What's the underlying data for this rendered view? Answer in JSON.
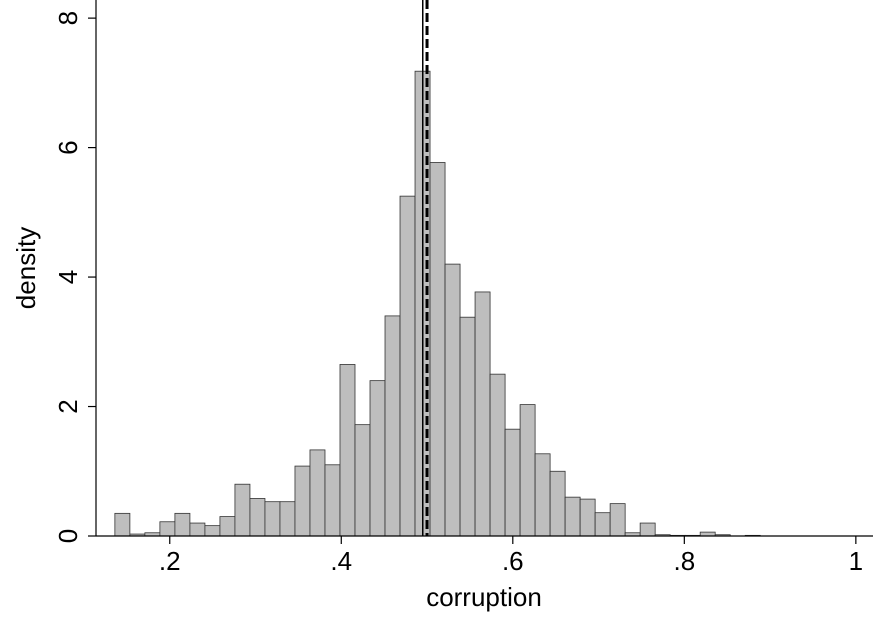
{
  "chart_data": {
    "type": "histogram",
    "x_label": "corruption",
    "y_label": "density",
    "bins": [
      0.136,
      0.1535,
      0.171,
      0.1885,
      0.206,
      0.2235,
      0.241,
      0.2585,
      0.276,
      0.2935,
      0.311,
      0.3285,
      0.346,
      0.3635,
      0.381,
      0.3985,
      0.416,
      0.4335,
      0.451,
      0.4685,
      0.486,
      0.5035,
      0.521,
      0.5385,
      0.556,
      0.5735,
      0.591,
      0.6085,
      0.626,
      0.6435,
      0.661,
      0.6785,
      0.696,
      0.7135,
      0.731,
      0.7485,
      0.766,
      0.7835,
      0.801,
      0.8185,
      0.836,
      0.8535,
      0.871,
      0.8885
    ],
    "values": [
      0.35,
      0.03,
      0.05,
      0.22,
      0.35,
      0.2,
      0.16,
      0.3,
      0.8,
      0.58,
      0.53,
      0.53,
      1.08,
      1.33,
      1.1,
      2.65,
      1.72,
      2.4,
      3.4,
      5.25,
      7.18,
      5.77,
      4.2,
      3.38,
      3.77,
      2.5,
      1.65,
      2.03,
      1.27,
      1.0,
      0.6,
      0.57,
      0.36,
      0.5,
      0.05,
      0.2,
      0.02,
      0.01,
      0.01,
      0.06,
      0.02,
      0,
      0.01
    ],
    "color": "#bebebe",
    "vlines": [
      {
        "x": 0.495,
        "style": "solid"
      },
      {
        "x": 0.5,
        "style": "dashed"
      }
    ],
    "xlim": [
      0.114,
      1.02
    ],
    "xticks": [
      {
        "value": 0.2,
        "label": ".2"
      },
      {
        "value": 0.4,
        "label": ".4"
      },
      {
        "value": 0.6,
        "label": ".6"
      },
      {
        "value": 0.8,
        "label": ".8"
      },
      1
    ],
    "ylim": [
      0,
      8.28
    ],
    "yticks": [
      0,
      2,
      4,
      6,
      8
    ]
  }
}
